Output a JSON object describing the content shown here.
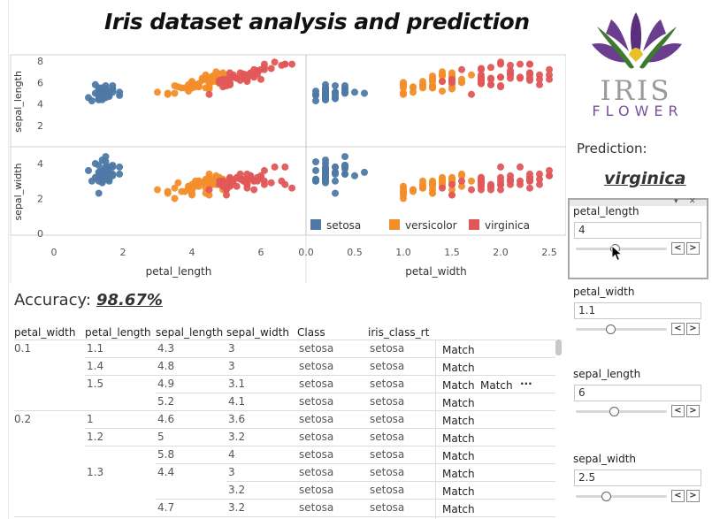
{
  "title": "Iris dataset analysis and prediction",
  "accuracy": {
    "label": "Accuracy:",
    "value": "98.67%"
  },
  "prediction": {
    "label": "Prediction:",
    "value": "virginica"
  },
  "logo": {
    "word1": "IRIS",
    "word2": "FLOWER",
    "color_petal": "#6b3d8f",
    "color_leaf": "#3d7a2e",
    "color_yellow": "#e8c02a"
  },
  "chart_data": {
    "type": "scatter",
    "layout": "matrix",
    "columns": [
      "petal_length",
      "petal_width"
    ],
    "rows": [
      "sepal_length",
      "sepal_width"
    ],
    "xticks": {
      "petal_length": [
        "0",
        "2",
        "4",
        "6"
      ],
      "petal_width": [
        "0.0",
        "0.5",
        "1.0",
        "1.5",
        "2.0",
        "2.5"
      ]
    },
    "yticks": {
      "sepal_length": [
        "2",
        "4",
        "6",
        "8"
      ],
      "sepal_width": [
        "0",
        "2",
        "4"
      ]
    },
    "legend": [
      {
        "name": "setosa",
        "color": "#4e79a7"
      },
      {
        "name": "versicolor",
        "color": "#f28e2b"
      },
      {
        "name": "virginica",
        "color": "#e15759"
      }
    ],
    "series": [
      {
        "name": "setosa",
        "petal_length": [
          1.4,
          1.4,
          1.3,
          1.5,
          1.4,
          1.7,
          1.4,
          1.5,
          1.4,
          1.5,
          1.5,
          1.6,
          1.4,
          1.1,
          1.2,
          1.5,
          1.3,
          1.4,
          1.7,
          1.5,
          1.7,
          1.5,
          1.0,
          1.7,
          1.9,
          1.6,
          1.6,
          1.5,
          1.4,
          1.6,
          1.6,
          1.5,
          1.5,
          1.4,
          1.5,
          1.2,
          1.3,
          1.5,
          1.3,
          1.5,
          1.3,
          1.3,
          1.3,
          1.6,
          1.9,
          1.4,
          1.6,
          1.4,
          1.5,
          1.4
        ],
        "petal_width": [
          0.2,
          0.2,
          0.2,
          0.2,
          0.2,
          0.4,
          0.3,
          0.2,
          0.2,
          0.1,
          0.2,
          0.2,
          0.1,
          0.1,
          0.2,
          0.4,
          0.4,
          0.3,
          0.3,
          0.3,
          0.2,
          0.4,
          0.2,
          0.5,
          0.2,
          0.2,
          0.4,
          0.2,
          0.2,
          0.2,
          0.2,
          0.4,
          0.1,
          0.2,
          0.1,
          0.2,
          0.2,
          0.1,
          0.2,
          0.2,
          0.3,
          0.3,
          0.2,
          0.6,
          0.4,
          0.3,
          0.2,
          0.2,
          0.2,
          0.2
        ],
        "sepal_length": [
          5.1,
          4.9,
          4.7,
          4.6,
          5.0,
          5.4,
          4.6,
          5.0,
          4.4,
          4.9,
          5.4,
          4.8,
          4.8,
          4.3,
          5.8,
          5.7,
          5.4,
          5.1,
          5.7,
          5.1,
          5.4,
          5.1,
          4.6,
          5.1,
          4.8,
          5.0,
          5.0,
          5.2,
          5.2,
          4.7,
          4.8,
          5.4,
          5.2,
          5.5,
          4.9,
          5.0,
          5.5,
          4.9,
          4.4,
          5.1,
          5.0,
          4.5,
          4.4,
          5.0,
          5.1,
          4.8,
          5.1,
          4.6,
          5.3,
          5.0
        ],
        "sepal_width": [
          3.5,
          3.0,
          3.2,
          3.1,
          3.6,
          3.9,
          3.4,
          3.4,
          2.9,
          3.1,
          3.7,
          3.4,
          3.0,
          3.0,
          4.0,
          4.4,
          3.9,
          3.5,
          3.8,
          3.8,
          3.4,
          3.7,
          3.6,
          3.3,
          3.4,
          3.0,
          3.4,
          3.5,
          3.4,
          3.2,
          3.1,
          3.4,
          4.1,
          4.2,
          3.1,
          3.2,
          3.5,
          3.6,
          3.0,
          3.4,
          3.5,
          2.3,
          3.2,
          3.5,
          3.8,
          3.0,
          3.8,
          3.2,
          3.7,
          3.3
        ]
      },
      {
        "name": "versicolor",
        "petal_length": [
          4.7,
          4.5,
          4.9,
          4.0,
          4.6,
          4.5,
          4.7,
          3.3,
          4.6,
          3.9,
          3.5,
          4.2,
          4.0,
          4.7,
          3.6,
          4.4,
          4.5,
          4.1,
          4.5,
          3.9,
          4.8,
          4.0,
          4.9,
          4.7,
          4.3,
          4.4,
          4.8,
          5.0,
          4.5,
          3.5,
          3.8,
          3.7,
          3.9,
          5.1,
          4.5,
          4.5,
          4.7,
          4.4,
          4.1,
          4.0,
          4.4,
          4.6,
          4.0,
          3.3,
          4.2,
          4.2,
          4.2,
          4.3,
          3.0,
          4.1
        ],
        "petal_width": [
          1.4,
          1.5,
          1.5,
          1.3,
          1.5,
          1.3,
          1.6,
          1.0,
          1.3,
          1.4,
          1.0,
          1.5,
          1.0,
          1.4,
          1.3,
          1.4,
          1.5,
          1.0,
          1.5,
          1.1,
          1.8,
          1.3,
          1.5,
          1.2,
          1.3,
          1.4,
          1.4,
          1.7,
          1.5,
          1.0,
          1.1,
          1.0,
          1.2,
          1.6,
          1.5,
          1.6,
          1.5,
          1.3,
          1.3,
          1.3,
          1.2,
          1.4,
          1.2,
          1.0,
          1.3,
          1.2,
          1.3,
          1.3,
          1.1,
          1.3
        ],
        "sepal_length": [
          7.0,
          6.4,
          6.9,
          5.5,
          6.5,
          5.7,
          6.3,
          4.9,
          6.6,
          5.2,
          5.0,
          5.9,
          6.0,
          6.1,
          5.6,
          6.7,
          5.6,
          5.8,
          6.2,
          5.6,
          5.9,
          6.1,
          6.3,
          6.1,
          6.4,
          6.6,
          6.8,
          6.7,
          6.0,
          5.7,
          5.5,
          5.5,
          5.8,
          6.0,
          5.4,
          6.0,
          6.7,
          6.3,
          5.6,
          5.5,
          5.5,
          6.1,
          5.8,
          5.0,
          5.6,
          5.7,
          5.7,
          6.2,
          5.1,
          5.7
        ],
        "sepal_width": [
          3.2,
          3.2,
          3.1,
          2.3,
          2.8,
          2.8,
          3.3,
          2.4,
          2.9,
          2.7,
          2.0,
          3.0,
          2.2,
          2.9,
          2.9,
          3.1,
          3.0,
          2.7,
          2.2,
          2.5,
          3.2,
          2.8,
          2.5,
          2.8,
          2.9,
          3.0,
          2.8,
          3.0,
          2.9,
          2.6,
          2.4,
          2.4,
          2.7,
          2.7,
          3.0,
          3.4,
          3.1,
          2.3,
          3.0,
          2.5,
          2.6,
          3.0,
          2.6,
          2.3,
          2.7,
          3.0,
          2.9,
          2.9,
          2.5,
          2.8
        ]
      },
      {
        "name": "virginica",
        "petal_length": [
          6.0,
          5.1,
          5.9,
          5.6,
          5.8,
          6.6,
          4.5,
          6.3,
          5.8,
          6.1,
          5.1,
          5.3,
          5.5,
          5.0,
          5.1,
          5.3,
          5.5,
          6.7,
          6.9,
          5.0,
          5.7,
          4.9,
          6.7,
          4.9,
          5.7,
          6.0,
          4.8,
          4.9,
          5.6,
          5.8,
          6.1,
          6.4,
          5.6,
          5.1,
          5.6,
          6.1,
          5.6,
          5.5,
          4.8,
          5.4,
          5.6,
          5.1,
          5.1,
          5.9,
          5.7,
          5.2,
          5.0,
          5.2,
          5.4,
          5.1
        ],
        "petal_width": [
          2.5,
          1.9,
          2.1,
          1.8,
          2.2,
          2.1,
          1.7,
          1.8,
          1.8,
          2.5,
          2.0,
          1.9,
          2.1,
          2.0,
          2.4,
          2.3,
          1.8,
          2.2,
          2.3,
          1.5,
          2.3,
          2.0,
          2.0,
          1.8,
          2.1,
          1.8,
          1.8,
          1.8,
          2.1,
          1.6,
          1.9,
          2.0,
          2.2,
          1.5,
          1.4,
          2.3,
          2.4,
          1.8,
          1.8,
          2.1,
          2.4,
          2.3,
          1.9,
          2.3,
          2.5,
          2.3,
          1.9,
          2.0,
          2.3,
          1.8
        ],
        "sepal_length": [
          6.3,
          5.8,
          7.1,
          6.3,
          6.5,
          7.6,
          4.9,
          7.3,
          6.7,
          7.2,
          6.5,
          6.4,
          6.8,
          5.7,
          5.8,
          6.4,
          6.5,
          7.7,
          7.7,
          6.0,
          6.9,
          5.6,
          7.7,
          6.3,
          6.7,
          7.2,
          6.2,
          6.1,
          6.4,
          7.2,
          7.4,
          7.9,
          6.4,
          6.3,
          6.1,
          7.7,
          6.3,
          6.4,
          6.0,
          6.9,
          6.7,
          6.9,
          5.8,
          6.8,
          6.7,
          6.7,
          6.3,
          6.5,
          6.2,
          5.9
        ],
        "sepal_width": [
          3.3,
          2.7,
          3.0,
          2.9,
          3.0,
          3.0,
          2.5,
          2.9,
          2.5,
          3.6,
          3.2,
          2.7,
          3.0,
          2.5,
          2.8,
          3.2,
          3.0,
          3.8,
          2.6,
          2.2,
          3.2,
          2.8,
          2.8,
          2.7,
          3.3,
          3.2,
          2.8,
          3.0,
          2.8,
          3.0,
          2.8,
          3.8,
          2.8,
          2.8,
          2.6,
          3.0,
          3.4,
          3.1,
          3.0,
          3.1,
          3.1,
          3.1,
          2.7,
          3.2,
          3.3,
          3.0,
          2.5,
          3.0,
          3.4,
          3.0
        ]
      }
    ]
  },
  "table": {
    "headers": [
      "petal_width",
      "petal_length",
      "sepal_length",
      "sepal_width",
      "Class",
      "iris_class_rt"
    ],
    "rows": [
      {
        "pw": "0.1",
        "pl": "1.1",
        "sl": "4.3",
        "sw": "3",
        "cls": "setosa",
        "rt": "setosa",
        "m": "Match"
      },
      {
        "pw": "",
        "pl": "1.4",
        "sl": "4.8",
        "sw": "3",
        "cls": "setosa",
        "rt": "setosa",
        "m": "Match"
      },
      {
        "pw": "",
        "pl": "1.5",
        "sl": "4.9",
        "sw": "3.1",
        "cls": "setosa",
        "rt": "setosa",
        "m": "Match",
        "m2": "Match",
        "more": "···"
      },
      {
        "pw": "",
        "pl": "",
        "sl": "5.2",
        "sw": "4.1",
        "cls": "setosa",
        "rt": "setosa",
        "m": "Match"
      },
      {
        "pw": "0.2",
        "pl": "1",
        "sl": "4.6",
        "sw": "3.6",
        "cls": "setosa",
        "rt": "setosa",
        "m": "Match"
      },
      {
        "pw": "",
        "pl": "1.2",
        "sl": "5",
        "sw": "3.2",
        "cls": "setosa",
        "rt": "setosa",
        "m": "Match"
      },
      {
        "pw": "",
        "pl": "",
        "sl": "5.8",
        "sw": "4",
        "cls": "setosa",
        "rt": "setosa",
        "m": "Match"
      },
      {
        "pw": "",
        "pl": "1.3",
        "sl": "4.4",
        "sw": "3",
        "cls": "setosa",
        "rt": "setosa",
        "m": "Match"
      },
      {
        "pw": "",
        "pl": "",
        "sl": "",
        "sw": "3.2",
        "cls": "setosa",
        "rt": "setosa",
        "m": "Match"
      },
      {
        "pw": "",
        "pl": "",
        "sl": "4.7",
        "sw": "3.2",
        "cls": "setosa",
        "rt": "setosa",
        "m": "Match"
      }
    ]
  },
  "parameters": [
    {
      "label": "petal_length",
      "value": "4",
      "fraction": 0.43
    },
    {
      "label": "petal_width",
      "value": "1.1",
      "fraction": 0.38
    },
    {
      "label": "sepal_length",
      "value": "6",
      "fraction": 0.42
    },
    {
      "label": "sepal_width",
      "value": "2.5",
      "fraction": 0.33
    }
  ],
  "stepper": {
    "prev": "<",
    "next": ">"
  },
  "panel_controls": {
    "dropdown": "▾",
    "close": "✕"
  }
}
